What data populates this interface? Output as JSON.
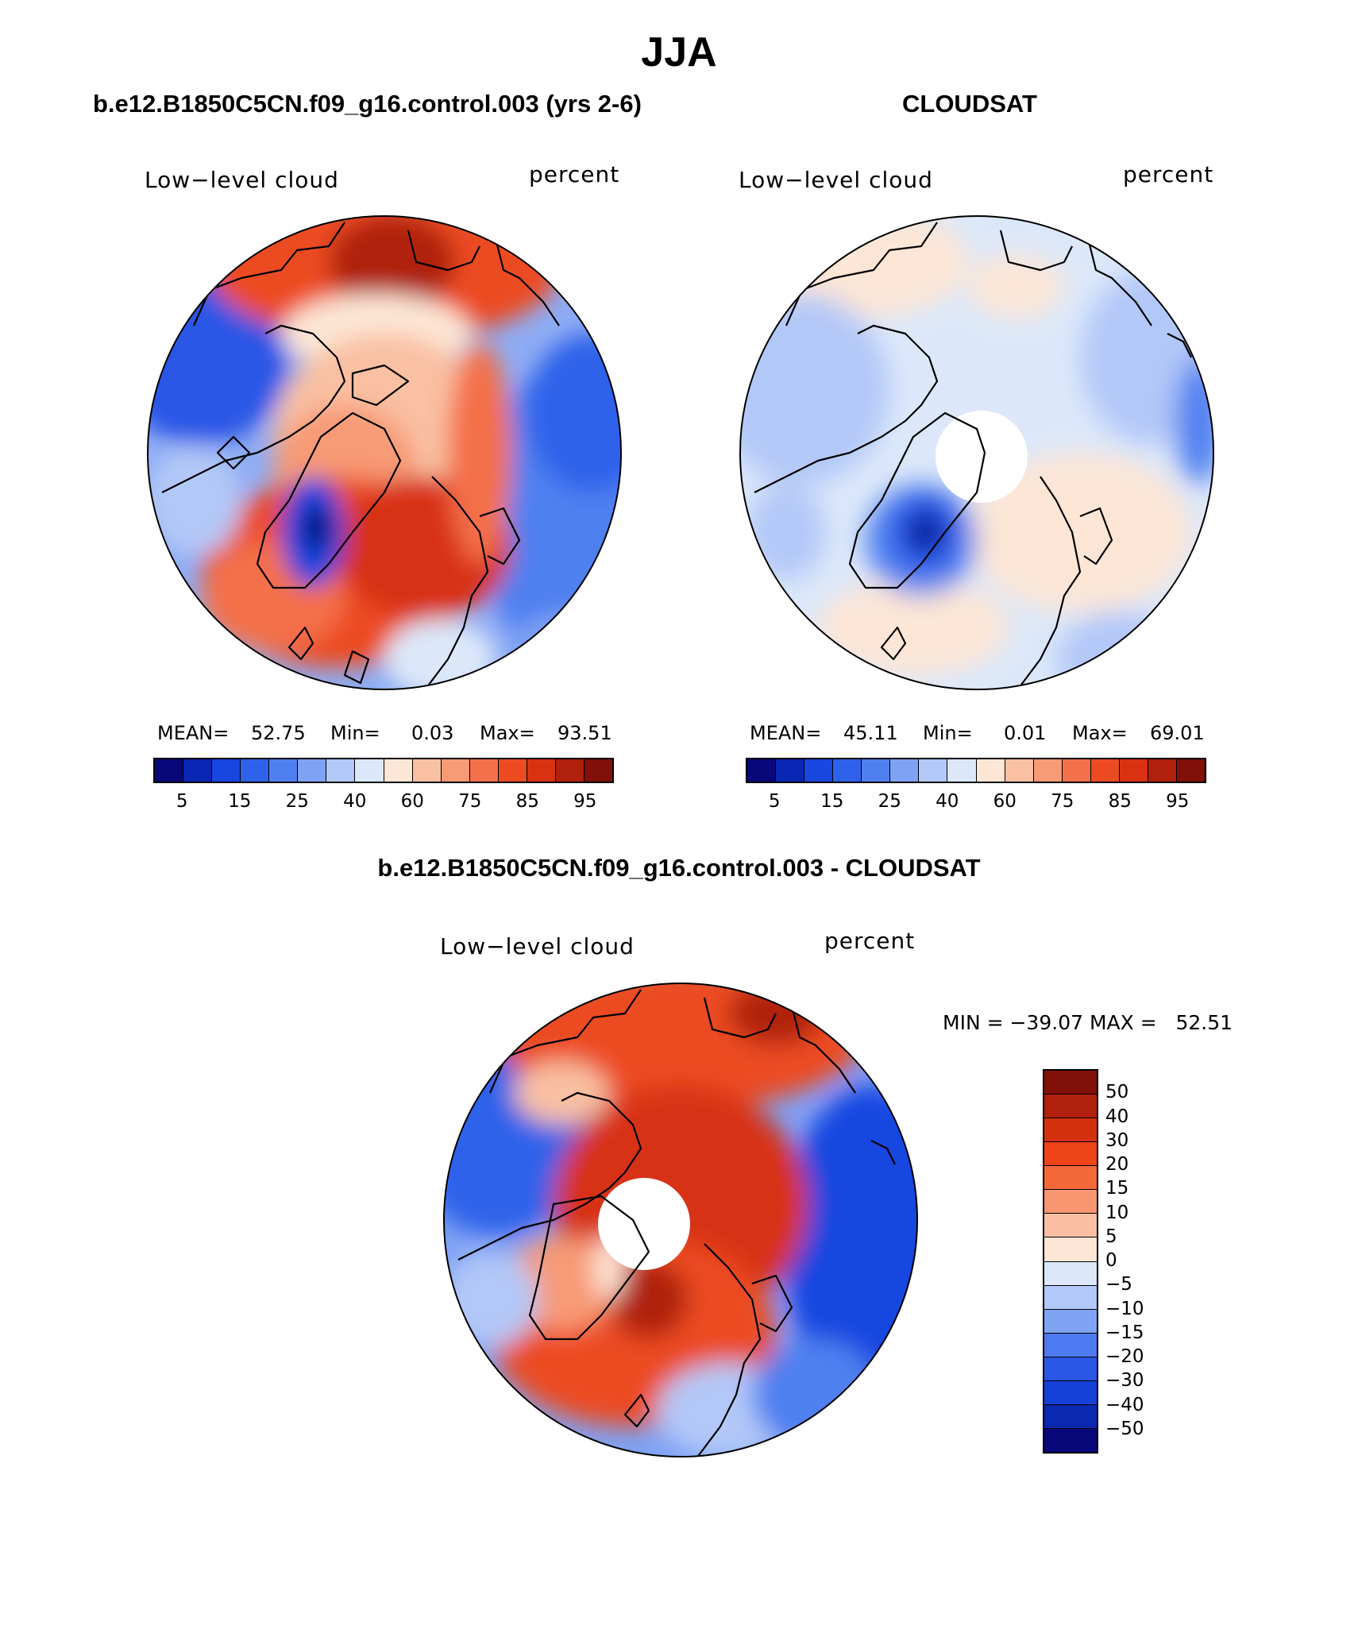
{
  "page_title": "JJA",
  "panels": [
    {
      "id": "model",
      "heading": "b.e12.B1850C5CN.f09_g16.control.003 (yrs 2-6)",
      "variable_label": "Low−level cloud",
      "units_label": "percent",
      "mean_label": "MEAN=",
      "mean_value": "52.75",
      "min_label": "Min=",
      "min_value": "0.03",
      "max_label": "Max=",
      "max_value": "93.51"
    },
    {
      "id": "obs",
      "heading": "CLOUDSAT",
      "variable_label": "Low−level cloud",
      "units_label": "percent",
      "mean_label": "MEAN=",
      "mean_value": "45.11",
      "min_label": "Min=",
      "min_value": "0.01",
      "max_label": "Max=",
      "max_value": "69.01"
    }
  ],
  "diff_panel": {
    "heading": "b.e12.B1850C5CN.f09_g16.control.003 - CLOUDSAT",
    "variable_label": "Low−level cloud",
    "units_label": "percent",
    "minmax_text": "MIN = −39.07 MAX =   52.51"
  },
  "colorbar_horizontal": {
    "colors": [
      "#08087a",
      "#0a26b4",
      "#1846e0",
      "#2e62ea",
      "#5080f0",
      "#7ea2f4",
      "#b2c8f8",
      "#dce8fa",
      "#fde6d6",
      "#f9c0a2",
      "#f79a76",
      "#f4704a",
      "#ec4b22",
      "#d83212",
      "#b0200c",
      "#801008"
    ],
    "tick_labels": [
      "5",
      "15",
      "25",
      "40",
      "60",
      "75",
      "85",
      "95"
    ]
  },
  "colorbar_vertical": {
    "colors": [
      "#801008",
      "#b0200c",
      "#d4300e",
      "#ee4418",
      "#f4683a",
      "#f79670",
      "#fabfa2",
      "#fde6d6",
      "#dce8fa",
      "#b2c8f8",
      "#80a4f4",
      "#4d7af0",
      "#2a56e6",
      "#1440d8",
      "#0a28b0",
      "#08087a"
    ],
    "tick_labels": [
      "50",
      "40",
      "30",
      "20",
      "15",
      "10",
      "5",
      "0",
      "−5",
      "−10",
      "−15",
      "−20",
      "−30",
      "−40",
      "−50"
    ]
  },
  "chart_data": [
    {
      "type": "heatmap",
      "title": "b.e12.B1850C5CN.f09_g16.control.003 (yrs 2-6)",
      "variable": "Low−level cloud",
      "units": "percent",
      "projection": "north polar stereographic",
      "mean": 52.75,
      "min": 0.03,
      "max": 93.51,
      "levels": [
        5,
        10,
        15,
        20,
        25,
        30,
        40,
        50,
        60,
        70,
        75,
        80,
        85,
        90,
        95
      ]
    },
    {
      "type": "heatmap",
      "title": "CLOUDSAT",
      "variable": "Low−level cloud",
      "units": "percent",
      "projection": "north polar stereographic",
      "mean": 45.11,
      "min": 0.01,
      "max": 69.01,
      "levels": [
        5,
        10,
        15,
        20,
        25,
        30,
        40,
        50,
        60,
        70,
        75,
        80,
        85,
        90,
        95
      ]
    },
    {
      "type": "heatmap",
      "title": "b.e12.B1850C5CN.f09_g16.control.003 - CLOUDSAT",
      "variable": "Low−level cloud",
      "units": "percent",
      "projection": "north polar stereographic",
      "min": -39.07,
      "max": 52.51,
      "levels": [
        -50,
        -40,
        -30,
        -20,
        -15,
        -10,
        -5,
        0,
        5,
        10,
        15,
        20,
        30,
        40,
        50
      ]
    }
  ]
}
